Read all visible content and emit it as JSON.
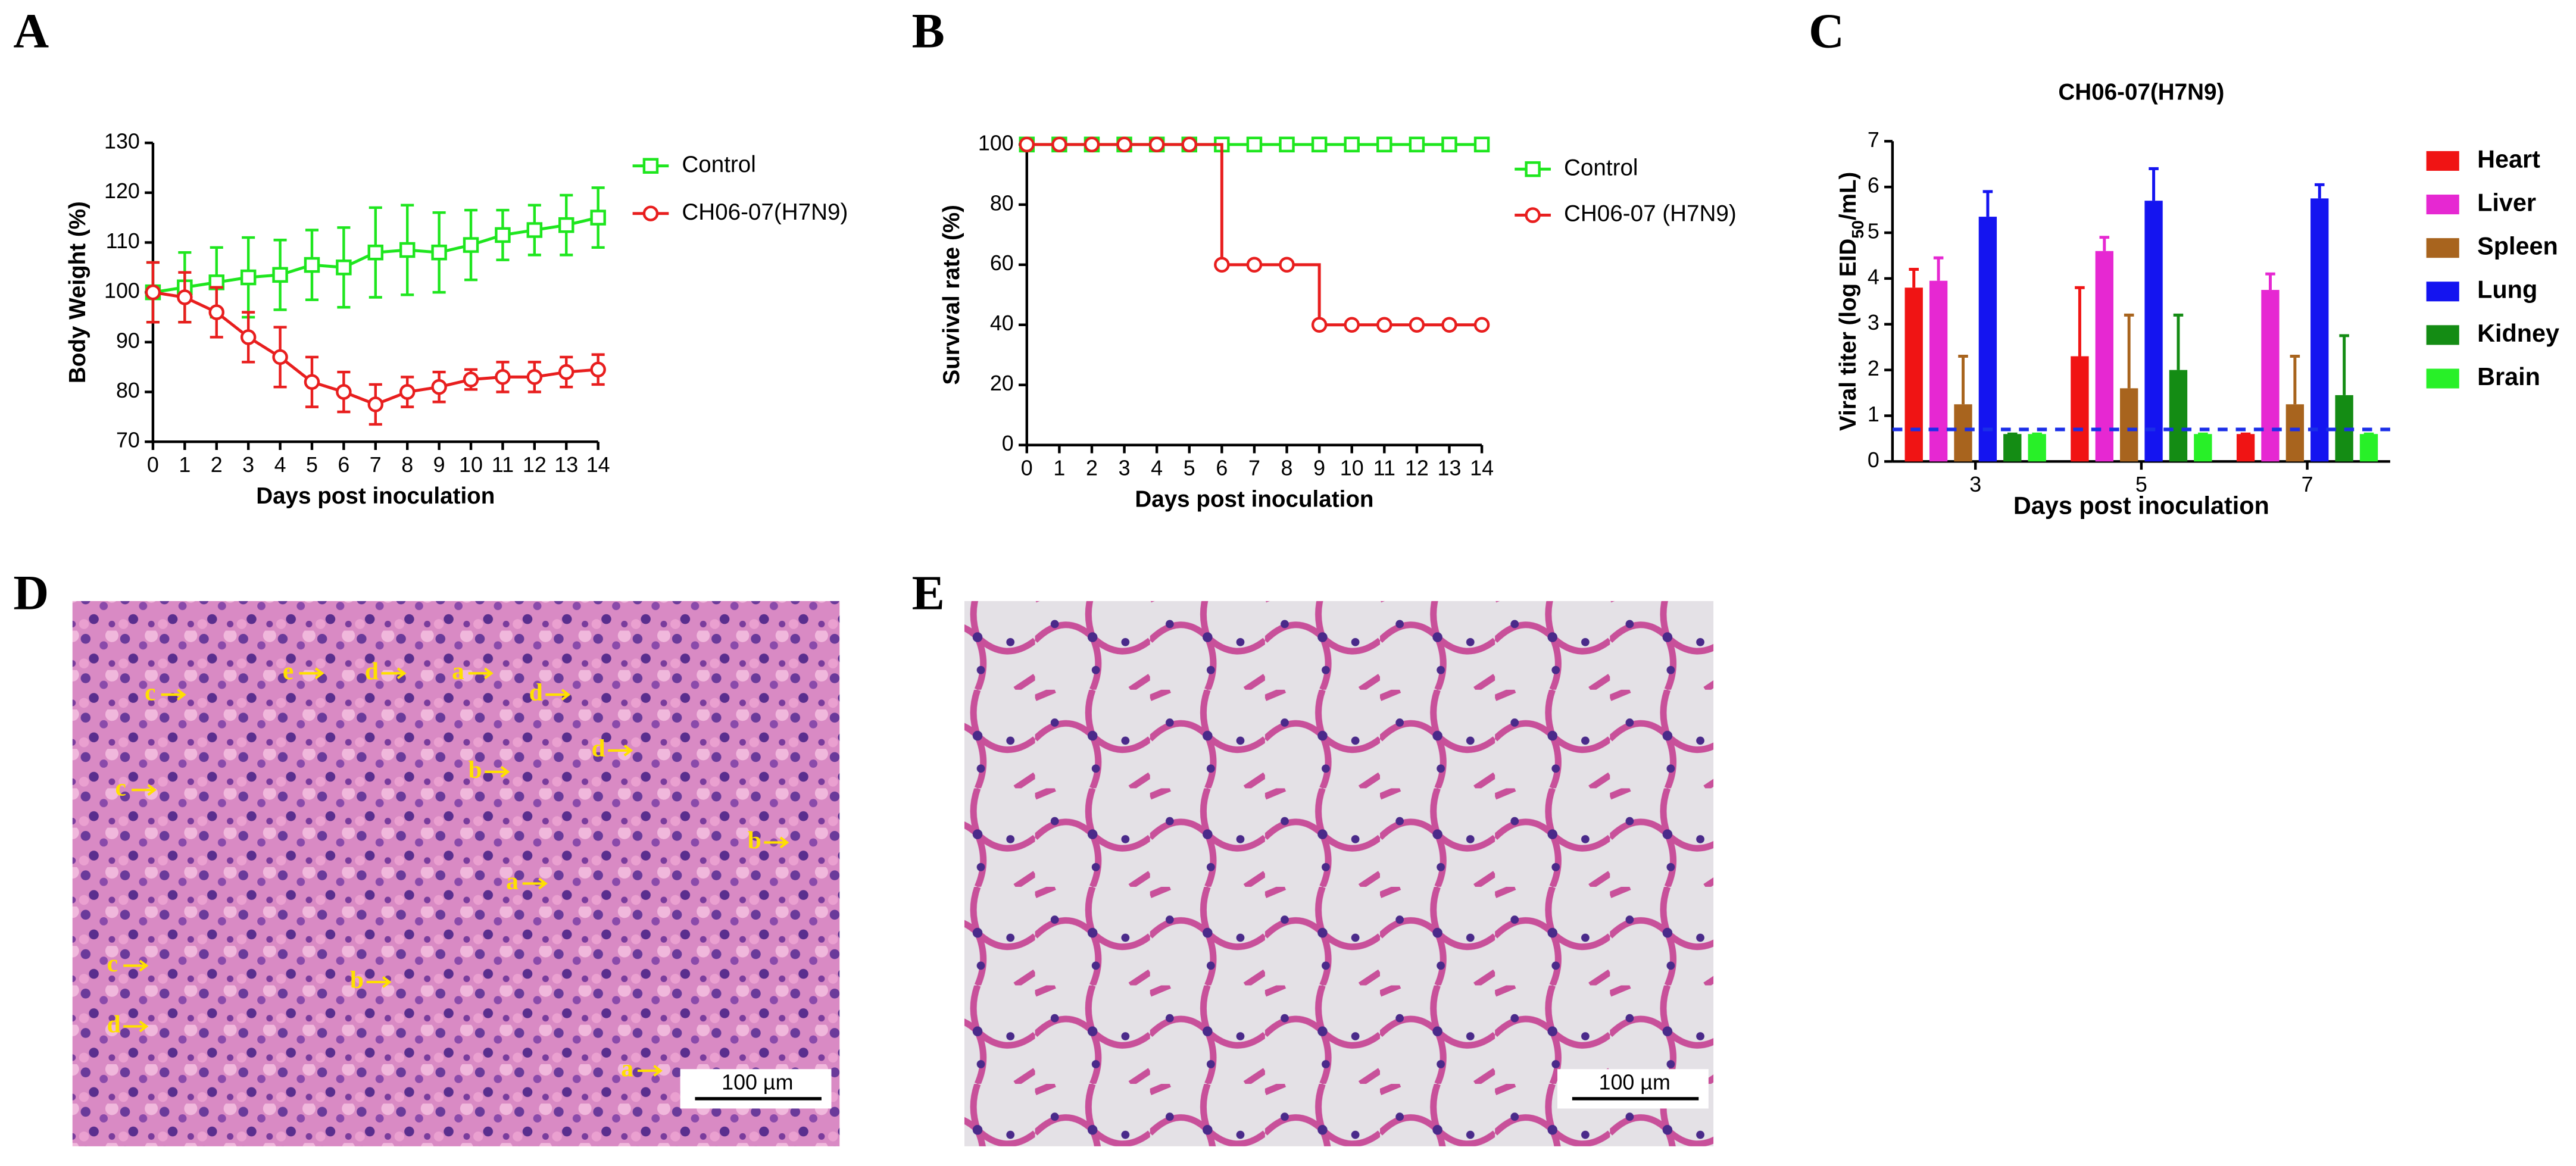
{
  "panels": [
    "A",
    "B",
    "C",
    "D",
    "E"
  ],
  "chart_data": [
    {
      "type": "line",
      "x_label": "Days post inoculation",
      "y_label": "Body Weight (%)",
      "x": [
        0,
        1,
        2,
        3,
        4,
        5,
        6,
        7,
        8,
        9,
        10,
        11,
        12,
        13,
        14
      ],
      "xlim": [
        0,
        14
      ],
      "xticks": [
        0,
        1,
        2,
        3,
        4,
        5,
        6,
        7,
        8,
        9,
        10,
        11,
        12,
        13,
        14
      ],
      "ylim": [
        70,
        130
      ],
      "yticks": [
        70,
        80,
        90,
        100,
        110,
        120,
        130
      ],
      "series": [
        {
          "name": "Control",
          "color": "#1ee61e",
          "marker": "square",
          "values": [
            100,
            101,
            102,
            103,
            103.5,
            105.5,
            105,
            108,
            108.5,
            108,
            109.5,
            111.5,
            112.5,
            113.5,
            115
          ],
          "errors": [
            6,
            7,
            7,
            8,
            7,
            7,
            8,
            9,
            9,
            8,
            7,
            5,
            5,
            6,
            6
          ]
        },
        {
          "name": "CH06-07(H7N9)",
          "color": "#e81e1e",
          "marker": "circle",
          "values": [
            100,
            99,
            96,
            91,
            87,
            82,
            80,
            77.5,
            80,
            81,
            82.5,
            83,
            83,
            84,
            84.5
          ],
          "errors": [
            6,
            5,
            5,
            5,
            6,
            5,
            4,
            4,
            3,
            3,
            2,
            3,
            3,
            3,
            3
          ]
        }
      ]
    },
    {
      "type": "line",
      "step": true,
      "x_label": "Days post inoculation",
      "y_label": "Survival rate (%)",
      "x": [
        0,
        1,
        2,
        3,
        4,
        5,
        6,
        7,
        8,
        9,
        10,
        11,
        12,
        13,
        14
      ],
      "xlim": [
        0,
        14
      ],
      "xticks": [
        0,
        1,
        2,
        3,
        4,
        5,
        6,
        7,
        8,
        9,
        10,
        11,
        12,
        13,
        14
      ],
      "ylim": [
        0,
        100
      ],
      "yticks": [
        0,
        20,
        40,
        60,
        80,
        100
      ],
      "series": [
        {
          "name": "Control",
          "color": "#1ee61e",
          "marker": "square",
          "values": [
            100,
            100,
            100,
            100,
            100,
            100,
            100,
            100,
            100,
            100,
            100,
            100,
            100,
            100,
            100
          ]
        },
        {
          "name": "CH06-07 (H7N9)",
          "color": "#e81e1e",
          "marker": "circle",
          "values": [
            100,
            100,
            100,
            100,
            100,
            100,
            60,
            60,
            60,
            40,
            40,
            40,
            40,
            40,
            40
          ]
        }
      ]
    },
    {
      "type": "bar",
      "title": "CH06-07(H7N9)",
      "x_label": "Days post inoculation",
      "y_label": [
        "Viral titer (log EID",
        "50",
        "/mL)"
      ],
      "categories": [
        "3",
        "5",
        "7"
      ],
      "ylim": [
        0,
        7
      ],
      "yticks": [
        0,
        1,
        2,
        3,
        4,
        5,
        6,
        7
      ],
      "reference_line": 0.7,
      "reference_color": "#1a2ee8",
      "series": [
        {
          "name": "Heart",
          "color": "#f01414",
          "values": [
            3.8,
            2.3,
            0.6
          ],
          "errors": [
            0.4,
            1.5,
            0
          ]
        },
        {
          "name": "Liver",
          "color": "#e628d2",
          "values": [
            3.95,
            4.6,
            3.75
          ],
          "errors": [
            0.5,
            0.3,
            0.35
          ]
        },
        {
          "name": "Spleen",
          "color": "#a8641e",
          "values": [
            1.25,
            1.6,
            1.25
          ],
          "errors": [
            1.05,
            1.6,
            1.05
          ]
        },
        {
          "name": "Lung",
          "color": "#1414f0",
          "values": [
            5.35,
            5.7,
            5.75
          ],
          "errors": [
            0.55,
            0.7,
            0.3
          ]
        },
        {
          "name": "Kidney",
          "color": "#148c14",
          "values": [
            0.6,
            2.0,
            1.45
          ],
          "errors": [
            0,
            1.2,
            1.3
          ]
        },
        {
          "name": "Brain",
          "color": "#28f028",
          "values": [
            0.6,
            0.6,
            0.6
          ],
          "errors": [
            0,
            0,
            0
          ]
        }
      ]
    }
  ],
  "images": [
    {
      "scale_bar": "100 µm",
      "annotations": [
        "c",
        "e",
        "d",
        "a",
        "d",
        "d",
        "b",
        "c",
        "b",
        "a",
        "c",
        "b",
        "d",
        "a"
      ]
    },
    {
      "scale_bar": "100 µm"
    }
  ]
}
